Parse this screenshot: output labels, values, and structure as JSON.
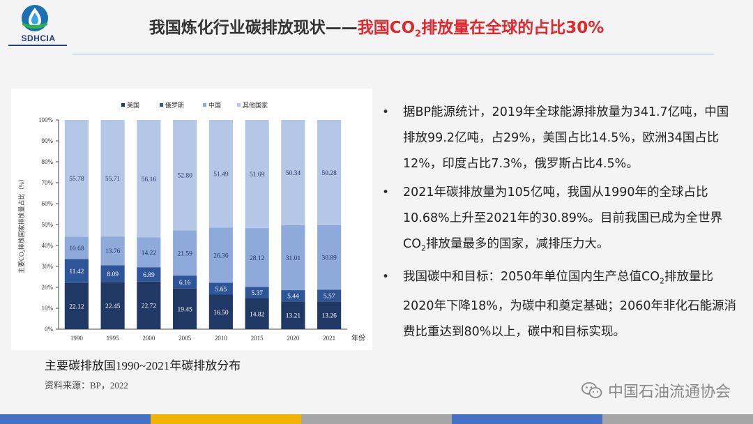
{
  "logo": {
    "text": "SDHCIA"
  },
  "title": {
    "part1": "我国炼化行业碳排放现状——",
    "part2a": "我国CO",
    "part2sub": "2",
    "part2b": "排放量在全球的占比30%"
  },
  "chart_data": {
    "type": "bar",
    "stacked": true,
    "percent": true,
    "categories": [
      "1990",
      "1995",
      "2000",
      "2005",
      "2010",
      "2015",
      "2020",
      "2021"
    ],
    "series": [
      {
        "name": "美国",
        "color": "#1f3864",
        "values": [
          22.12,
          22.45,
          22.72,
          19.45,
          16.5,
          14.82,
          13.21,
          13.26
        ]
      },
      {
        "name": "俄罗斯",
        "color": "#2e5597",
        "values": [
          11.42,
          8.09,
          6.89,
          6.16,
          5.65,
          5.37,
          5.44,
          5.57
        ]
      },
      {
        "name": "中国",
        "color": "#8eaadb",
        "values": [
          10.68,
          13.76,
          14.22,
          21.59,
          26.36,
          28.12,
          31.01,
          30.89
        ]
      },
      {
        "name": "其他国家",
        "color": "#b4c7e7",
        "values": [
          55.78,
          55.71,
          56.16,
          52.8,
          51.49,
          51.69,
          50.34,
          50.28
        ]
      }
    ],
    "labels": [
      [
        "22.12",
        "22.45",
        "22.72",
        "19.45",
        "16.50",
        "14.82",
        "13.21",
        "13.26"
      ],
      [
        "11.42",
        "8.09",
        "6.89",
        "6.16",
        "5.65",
        "5.37",
        "5.44",
        "5.57"
      ],
      [
        "10.68",
        "13.76",
        "14.22",
        "21.59",
        "26.36",
        "28.12",
        "31.01",
        "30.89"
      ],
      [
        "55.78",
        "55.71",
        "56.16",
        "52.80",
        "51.49",
        "51.69",
        "50.34",
        "50.28"
      ]
    ],
    "yticks": [
      "0%",
      "10%",
      "20%",
      "30%",
      "40%",
      "50%",
      "60%",
      "70%",
      "80%",
      "90%",
      "100%"
    ],
    "ylim": [
      0,
      100
    ],
    "ylabel": "主要CO₂排放国家排放量占比（%）",
    "xlabel": "年份",
    "legend_position": "top"
  },
  "caption": "主要碳排放国1990~2021年碳排放分布",
  "source": "资料来源：BP，2022",
  "bullets": [
    {
      "text": "据BP能源统计，2019年全球能源排放量为341.7亿吨，中国排放99.2亿吨，占29%，美国占比14.5%，欧洲34国占比12%，印度占比7.3%，俄罗斯占比4.5%。"
    },
    {
      "pre": "2021年碳排放量为105亿吨，我国从1990年的全球占比10.68%上升至2021年的30.89%。目前我国已成为全世界CO",
      "sub": "2",
      "post": "排放量最多的国家，减排压力大。"
    },
    {
      "pre": "我国碳中和目标：2050年单位国内生产总值CO",
      "sub": "2",
      "post": "排放量比2020年下降18%，为碳中和奠定基础；2060年非化石能源消费比重达到80%以上，碳中和目标实现。"
    }
  ],
  "bullet_symbol": "•",
  "watermark": "中国石油流通协会",
  "strip_colors": [
    "#4472c4",
    "#f0b400",
    "#a5a5a5",
    "#4472c4",
    "#a5a5a5"
  ]
}
